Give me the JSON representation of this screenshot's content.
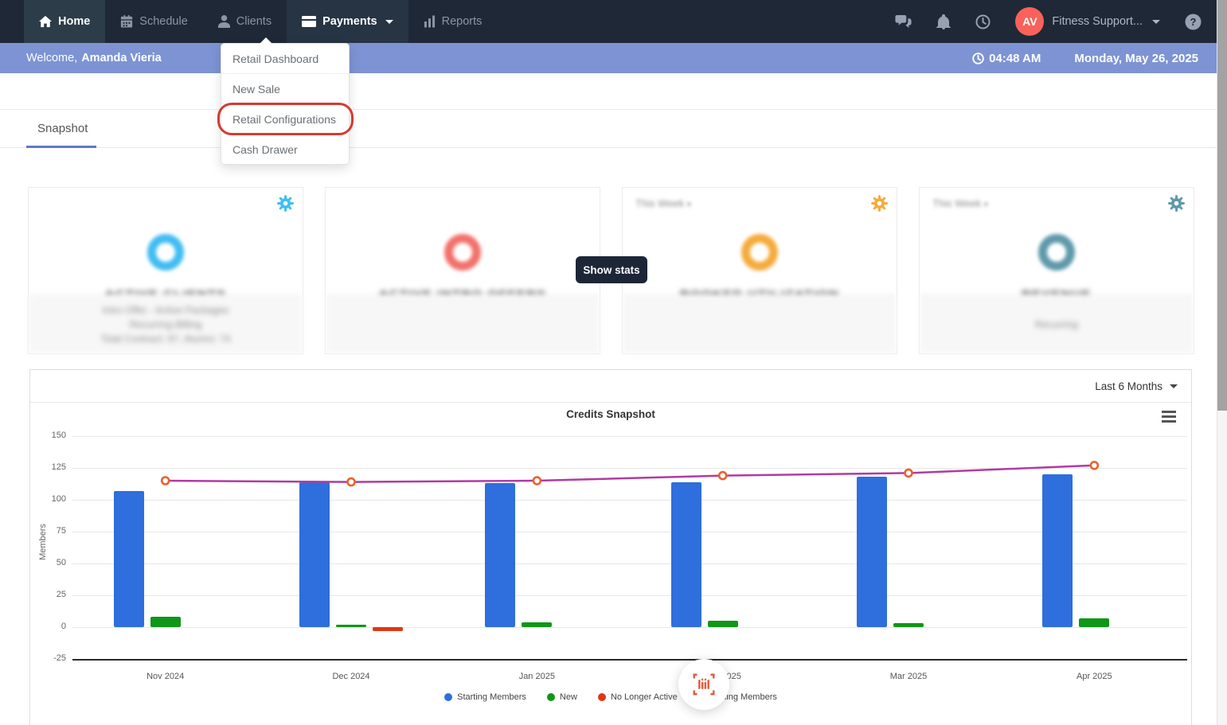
{
  "nav": {
    "items": [
      {
        "label": "Home",
        "icon": "home-icon",
        "state": "active"
      },
      {
        "label": "Schedule",
        "icon": "calendar-icon",
        "state": "normal"
      },
      {
        "label": "Clients",
        "icon": "clients-icon",
        "state": "normal"
      },
      {
        "label": "Payments",
        "icon": "payments-icon",
        "state": "menu-open",
        "has_caret": true
      },
      {
        "label": "Reports",
        "icon": "reports-icon",
        "state": "normal"
      }
    ],
    "right": {
      "avatar_initials": "AV",
      "avatar_color": "#f8625a",
      "account_label": "Fitness Support..."
    }
  },
  "welcome_bar": {
    "greeting": "Welcome,",
    "user_name": "Amanda Vieria",
    "time": "04:48 AM",
    "date": "Monday, May 26, 2025"
  },
  "payments_menu": {
    "items": [
      "Retail Dashboard",
      "New Sale",
      "Retail Configurations",
      "Cash Drawer"
    ],
    "highlighted_item": "Retail Configurations",
    "highlight_color": "#d43b2f"
  },
  "tabs": [
    {
      "label": "Snapshot",
      "active": true
    }
  ],
  "overlay": {
    "show_stats_label": "Show stats"
  },
  "stat_cards": [
    {
      "period": "",
      "title": "ACTIVE CLIENTS",
      "accent": "#41bdf2",
      "gear": true,
      "footer_lines": [
        "Intro Offer - Active Packages",
        "Recurring Billing",
        "Total Contract: 97, Alumni: 74"
      ]
    },
    {
      "period": "",
      "title": "ACTIVE INTRO OFFERS",
      "accent": "#f2716b",
      "gear": false,
      "footer_lines": []
    },
    {
      "period": "This Week",
      "title": "BOOKED UTILIZATION",
      "accent": "#f5ab3d",
      "gear": true,
      "footer_lines": []
    },
    {
      "period": "This Week",
      "title": "REVENUE",
      "accent": "#5e99ab",
      "gear": true,
      "footer_lines": [
        "Recurring"
      ]
    }
  ],
  "chart_card": {
    "range_label": "Last 6 Months",
    "title": "Credits Snapshot"
  },
  "chart_data": {
    "type": "bar",
    "title": "Credits Snapshot",
    "categories": [
      "Nov 2024",
      "Dec 2024",
      "Jan 2025",
      "Feb 2025",
      "Mar 2025",
      "Apr 2025"
    ],
    "series": [
      {
        "name": "Starting Members",
        "type": "bar",
        "color": "#2e6edd",
        "values": [
          107,
          114,
          113,
          114,
          118,
          120
        ]
      },
      {
        "name": "New",
        "type": "bar",
        "color": "#109618",
        "values": [
          8,
          2,
          4,
          5,
          3,
          7
        ]
      },
      {
        "name": "No Longer Active",
        "type": "bar",
        "color": "#dc3912",
        "values": [
          0,
          -3,
          0,
          0,
          0,
          0
        ]
      },
      {
        "name": "Ending Members",
        "type": "line",
        "color": "#b13ba1",
        "marker_color": "#e8622c",
        "values": [
          115,
          114,
          115,
          119,
          121,
          127
        ]
      }
    ],
    "xlabel": "",
    "ylabel": "Members",
    "ylim": [
      -25,
      150
    ],
    "ytick_step": 25,
    "grid": true,
    "legend_position": "bottom"
  }
}
